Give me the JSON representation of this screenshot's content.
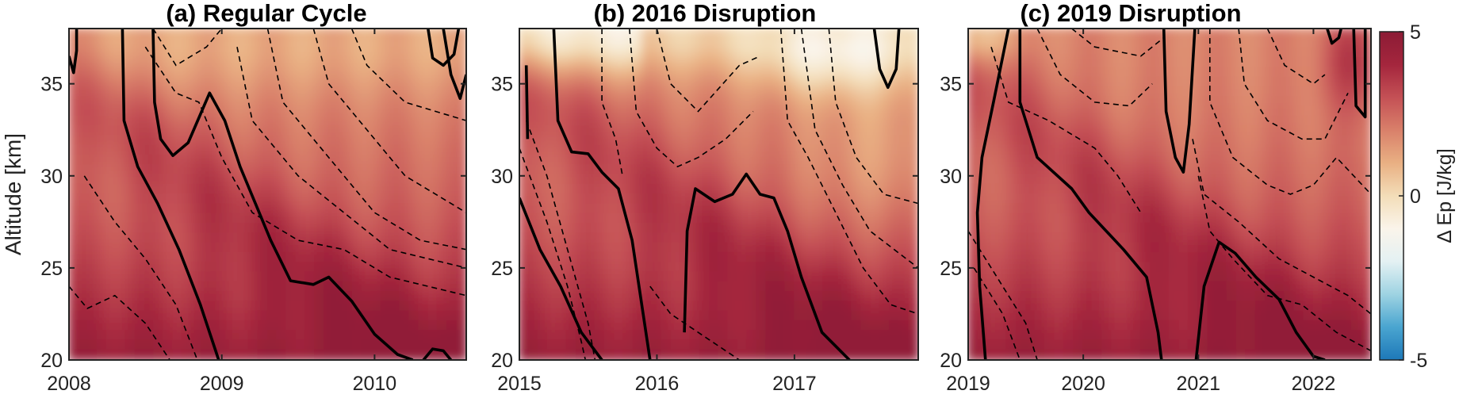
{
  "colors": {
    "cmap": [
      "#1d78b8",
      "#4aa5d0",
      "#9ed3e2",
      "#e4f1f3",
      "#faf4ea",
      "#f3ddb8",
      "#e9b083",
      "#d9806a",
      "#c45055",
      "#a4263d",
      "#8c1b35"
    ]
  },
  "colorbar": {
    "label": "Δ Ep [J/kg]",
    "ticks": [
      5,
      0,
      -5
    ],
    "range": [
      -5,
      5
    ]
  },
  "chart_data": [
    {
      "type": "heatmap",
      "title": "(a) Regular Cycle",
      "ylabel": "Altitude [km]",
      "xlabel": "",
      "xlim": [
        2008,
        2010.6
      ],
      "ylim": [
        20,
        38
      ],
      "xticks": [
        "2008",
        "2009",
        "2010"
      ],
      "yticks": [
        "20",
        "25",
        "30",
        "35"
      ],
      "zero_contours": [
        [
          [
            2008.35,
            38
          ],
          [
            2008.36,
            33
          ],
          [
            2008.45,
            30.5
          ],
          [
            2008.58,
            28.5
          ],
          [
            2008.72,
            26
          ],
          [
            2008.86,
            23
          ],
          [
            2008.98,
            20
          ]
        ],
        [
          [
            2008.55,
            38
          ],
          [
            2008.56,
            34
          ],
          [
            2008.6,
            32
          ],
          [
            2008.68,
            31.1
          ],
          [
            2008.78,
            31.8
          ],
          [
            2008.92,
            34.5
          ],
          [
            2009.02,
            33
          ],
          [
            2009.12,
            30.5
          ],
          [
            2009.22,
            28.5
          ],
          [
            2009.32,
            26.5
          ],
          [
            2009.45,
            24.3
          ],
          [
            2009.6,
            24.1
          ],
          [
            2009.7,
            24.5
          ],
          [
            2009.85,
            23.2
          ],
          [
            2010.0,
            21.4
          ],
          [
            2010.15,
            20.3
          ],
          [
            2010.25,
            20
          ]
        ],
        [
          [
            2010.35,
            38
          ],
          [
            2010.38,
            36.4
          ],
          [
            2010.45,
            36.0
          ],
          [
            2010.52,
            36.6
          ],
          [
            2010.55,
            38
          ]
        ],
        [
          [
            2010.45,
            38
          ],
          [
            2010.5,
            35.5
          ],
          [
            2010.56,
            34.2
          ],
          [
            2010.6,
            35.5
          ]
        ],
        [
          [
            2008.0,
            36.5
          ],
          [
            2008.03,
            35.6
          ],
          [
            2008.05,
            36.8
          ],
          [
            2008.05,
            38
          ]
        ],
        [
          [
            2010.32,
            20
          ],
          [
            2010.38,
            20.6
          ],
          [
            2010.45,
            20.5
          ],
          [
            2010.5,
            20
          ]
        ]
      ],
      "dashed_contours": [
        [
          [
            2008.0,
            24
          ],
          [
            2008.12,
            22.8
          ],
          [
            2008.3,
            23.5
          ],
          [
            2008.5,
            22
          ],
          [
            2008.66,
            20
          ]
        ],
        [
          [
            2008.1,
            30
          ],
          [
            2008.3,
            27.5
          ],
          [
            2008.5,
            25.5
          ],
          [
            2008.7,
            23
          ],
          [
            2008.84,
            20
          ]
        ],
        [
          [
            2008.5,
            37
          ],
          [
            2008.7,
            34.5
          ],
          [
            2008.85,
            34
          ],
          [
            2009.0,
            31
          ],
          [
            2009.2,
            28
          ],
          [
            2009.5,
            26.5
          ],
          [
            2009.8,
            26
          ],
          [
            2010.1,
            24.5
          ],
          [
            2010.6,
            23.5
          ]
        ],
        [
          [
            2009.1,
            37
          ],
          [
            2009.2,
            33
          ],
          [
            2009.5,
            30
          ],
          [
            2009.8,
            28
          ],
          [
            2010.1,
            26
          ],
          [
            2010.6,
            25
          ]
        ],
        [
          [
            2009.3,
            38
          ],
          [
            2009.4,
            34
          ],
          [
            2009.7,
            31
          ],
          [
            2010.0,
            28
          ],
          [
            2010.3,
            26.5
          ],
          [
            2010.6,
            26
          ]
        ],
        [
          [
            2009.6,
            38
          ],
          [
            2009.7,
            35
          ],
          [
            2009.9,
            33
          ],
          [
            2010.2,
            30
          ],
          [
            2010.6,
            28
          ]
        ],
        [
          [
            2009.85,
            38
          ],
          [
            2009.95,
            36
          ],
          [
            2010.2,
            34
          ],
          [
            2010.6,
            33
          ]
        ],
        [
          [
            2008.55,
            38
          ],
          [
            2008.7,
            36
          ],
          [
            2008.9,
            37
          ],
          [
            2009.0,
            38
          ]
        ]
      ]
    },
    {
      "type": "heatmap",
      "title": "(b) 2016 Disruption",
      "xlabel": "",
      "ylabel": "",
      "xlim": [
        2015,
        2017.9
      ],
      "ylim": [
        20,
        38
      ],
      "xticks": [
        "2015",
        "2016",
        "2017"
      ],
      "yticks": [
        "20",
        "25",
        "30",
        "35"
      ],
      "zero_contours": [
        [
          [
            2015.05,
            36
          ],
          [
            2015.06,
            32
          ]
        ],
        [
          [
            2015.0,
            28.8
          ],
          [
            2015.15,
            26
          ],
          [
            2015.3,
            24
          ],
          [
            2015.45,
            21.5
          ],
          [
            2015.6,
            20
          ]
        ],
        [
          [
            2015.25,
            38
          ],
          [
            2015.28,
            33
          ],
          [
            2015.38,
            31.3
          ],
          [
            2015.5,
            31.2
          ],
          [
            2015.6,
            30.2
          ],
          [
            2015.72,
            29.3
          ],
          [
            2015.82,
            26.5
          ],
          [
            2015.9,
            22.5
          ],
          [
            2015.95,
            20
          ]
        ],
        [
          [
            2016.2,
            21.5
          ],
          [
            2016.22,
            27
          ],
          [
            2016.28,
            29.3
          ],
          [
            2016.42,
            28.6
          ],
          [
            2016.55,
            29.0
          ],
          [
            2016.65,
            30.1
          ],
          [
            2016.75,
            29.0
          ],
          [
            2016.85,
            28.8
          ],
          [
            2016.95,
            27
          ],
          [
            2017.05,
            24.5
          ],
          [
            2017.2,
            21.5
          ],
          [
            2017.4,
            20
          ]
        ],
        [
          [
            2017.58,
            38
          ],
          [
            2017.62,
            35.8
          ],
          [
            2017.68,
            34.8
          ],
          [
            2017.74,
            35.8
          ],
          [
            2017.76,
            38
          ]
        ]
      ],
      "dashed_contours": [
        [
          [
            2015.0,
            31.5
          ],
          [
            2015.2,
            27.5
          ],
          [
            2015.35,
            24
          ],
          [
            2015.45,
            21
          ],
          [
            2015.48,
            20
          ]
        ],
        [
          [
            2015.05,
            33
          ],
          [
            2015.2,
            30
          ],
          [
            2015.35,
            26
          ],
          [
            2015.5,
            22
          ],
          [
            2015.55,
            20
          ]
        ],
        [
          [
            2015.6,
            38
          ],
          [
            2015.6,
            34
          ],
          [
            2015.7,
            32
          ],
          [
            2015.75,
            30
          ]
        ],
        [
          [
            2015.8,
            38
          ],
          [
            2015.85,
            33.5
          ],
          [
            2016.0,
            31.5
          ],
          [
            2016.15,
            30.5
          ],
          [
            2016.3,
            31
          ],
          [
            2016.5,
            32
          ],
          [
            2016.7,
            33.5
          ]
        ],
        [
          [
            2016.0,
            38
          ],
          [
            2016.1,
            35
          ],
          [
            2016.3,
            33.5
          ],
          [
            2016.6,
            36
          ],
          [
            2016.75,
            36.5
          ]
        ],
        [
          [
            2016.9,
            38
          ],
          [
            2016.95,
            33
          ],
          [
            2017.1,
            31
          ],
          [
            2017.3,
            28
          ],
          [
            2017.5,
            25
          ],
          [
            2017.7,
            23
          ],
          [
            2017.9,
            22.5
          ]
        ],
        [
          [
            2017.05,
            38
          ],
          [
            2017.15,
            32.5
          ],
          [
            2017.35,
            29.5
          ],
          [
            2017.55,
            27
          ],
          [
            2017.9,
            25
          ]
        ],
        [
          [
            2017.25,
            38
          ],
          [
            2017.3,
            34
          ],
          [
            2017.45,
            31
          ],
          [
            2017.65,
            29
          ],
          [
            2017.9,
            28.5
          ]
        ],
        [
          [
            2015.95,
            24
          ],
          [
            2016.1,
            22.5
          ],
          [
            2016.3,
            21.5
          ],
          [
            2016.5,
            20.5
          ],
          [
            2016.6,
            20
          ]
        ]
      ]
    },
    {
      "type": "heatmap",
      "title": "(c) 2019 Disruption",
      "xlabel": "",
      "ylabel": "",
      "xlim": [
        2019,
        2022.5
      ],
      "ylim": [
        20,
        38
      ],
      "xticks": [
        "2019",
        "2020",
        "2021",
        "2022"
      ],
      "yticks": [
        "20",
        "25",
        "30",
        "35"
      ],
      "zero_contours": [
        [
          [
            2019.35,
            38
          ],
          [
            2019.22,
            34
          ],
          [
            2019.12,
            31
          ],
          [
            2019.08,
            28
          ],
          [
            2019.1,
            24
          ],
          [
            2019.15,
            20
          ]
        ],
        [
          [
            2019.45,
            38
          ],
          [
            2019.45,
            34
          ],
          [
            2019.6,
            31
          ],
          [
            2019.9,
            29.3
          ],
          [
            2020.05,
            28
          ],
          [
            2020.35,
            26
          ],
          [
            2020.55,
            24.5
          ],
          [
            2020.65,
            21.5
          ],
          [
            2020.68,
            20
          ]
        ],
        [
          [
            2020.7,
            38
          ],
          [
            2020.72,
            33.5
          ],
          [
            2020.8,
            31
          ],
          [
            2020.87,
            30.2
          ],
          [
            2020.92,
            32.8
          ],
          [
            2020.97,
            38
          ]
        ],
        [
          [
            2020.98,
            20
          ],
          [
            2021.05,
            24
          ],
          [
            2021.18,
            26.4
          ],
          [
            2021.32,
            25.8
          ],
          [
            2021.5,
            24.5
          ],
          [
            2021.7,
            23.3
          ],
          [
            2021.85,
            21.5
          ],
          [
            2022.0,
            20.2
          ],
          [
            2022.1,
            20
          ]
        ],
        [
          [
            2022.35,
            38
          ],
          [
            2022.37,
            33.8
          ],
          [
            2022.45,
            33.2
          ],
          [
            2022.45,
            38
          ]
        ],
        [
          [
            2022.12,
            38
          ],
          [
            2022.16,
            37.2
          ],
          [
            2022.22,
            37.5
          ],
          [
            2022.24,
            38
          ]
        ]
      ],
      "dashed_contours": [
        [
          [
            2019.0,
            27
          ],
          [
            2019.25,
            24.5
          ],
          [
            2019.5,
            22
          ],
          [
            2019.6,
            20
          ]
        ],
        [
          [
            2019.05,
            25
          ],
          [
            2019.3,
            22.5
          ],
          [
            2019.45,
            20
          ]
        ],
        [
          [
            2019.2,
            37
          ],
          [
            2019.35,
            34
          ],
          [
            2019.7,
            33
          ],
          [
            2020.1,
            31.5
          ],
          [
            2020.3,
            30
          ],
          [
            2020.5,
            28
          ]
        ],
        [
          [
            2019.6,
            38
          ],
          [
            2019.8,
            35.5
          ],
          [
            2020.1,
            34
          ],
          [
            2020.4,
            33.8
          ],
          [
            2020.6,
            35
          ]
        ],
        [
          [
            2019.9,
            38
          ],
          [
            2020.1,
            37
          ],
          [
            2020.5,
            36.5
          ],
          [
            2020.7,
            37.5
          ]
        ],
        [
          [
            2021.1,
            38
          ],
          [
            2021.1,
            34
          ],
          [
            2021.3,
            31
          ],
          [
            2021.6,
            29.5
          ],
          [
            2021.8,
            29
          ],
          [
            2022.0,
            29.5
          ],
          [
            2022.2,
            31
          ],
          [
            2022.5,
            29
          ]
        ],
        [
          [
            2021.35,
            38
          ],
          [
            2021.4,
            35
          ],
          [
            2021.6,
            33
          ],
          [
            2021.9,
            32
          ],
          [
            2022.1,
            32
          ],
          [
            2022.3,
            34.5
          ]
        ],
        [
          [
            2021.6,
            38
          ],
          [
            2021.75,
            36
          ],
          [
            2022.0,
            35
          ],
          [
            2022.1,
            35.5
          ]
        ],
        [
          [
            2021.0,
            30
          ],
          [
            2021.1,
            27
          ],
          [
            2021.3,
            25.5
          ],
          [
            2021.6,
            23.5
          ],
          [
            2021.9,
            23
          ],
          [
            2022.2,
            21.5
          ],
          [
            2022.5,
            20.5
          ]
        ],
        [
          [
            2020.95,
            32
          ],
          [
            2021.05,
            29
          ],
          [
            2021.35,
            27.5
          ],
          [
            2021.7,
            25.5
          ],
          [
            2022.0,
            24.5
          ],
          [
            2022.3,
            23.5
          ],
          [
            2022.5,
            22.5
          ]
        ]
      ]
    }
  ]
}
